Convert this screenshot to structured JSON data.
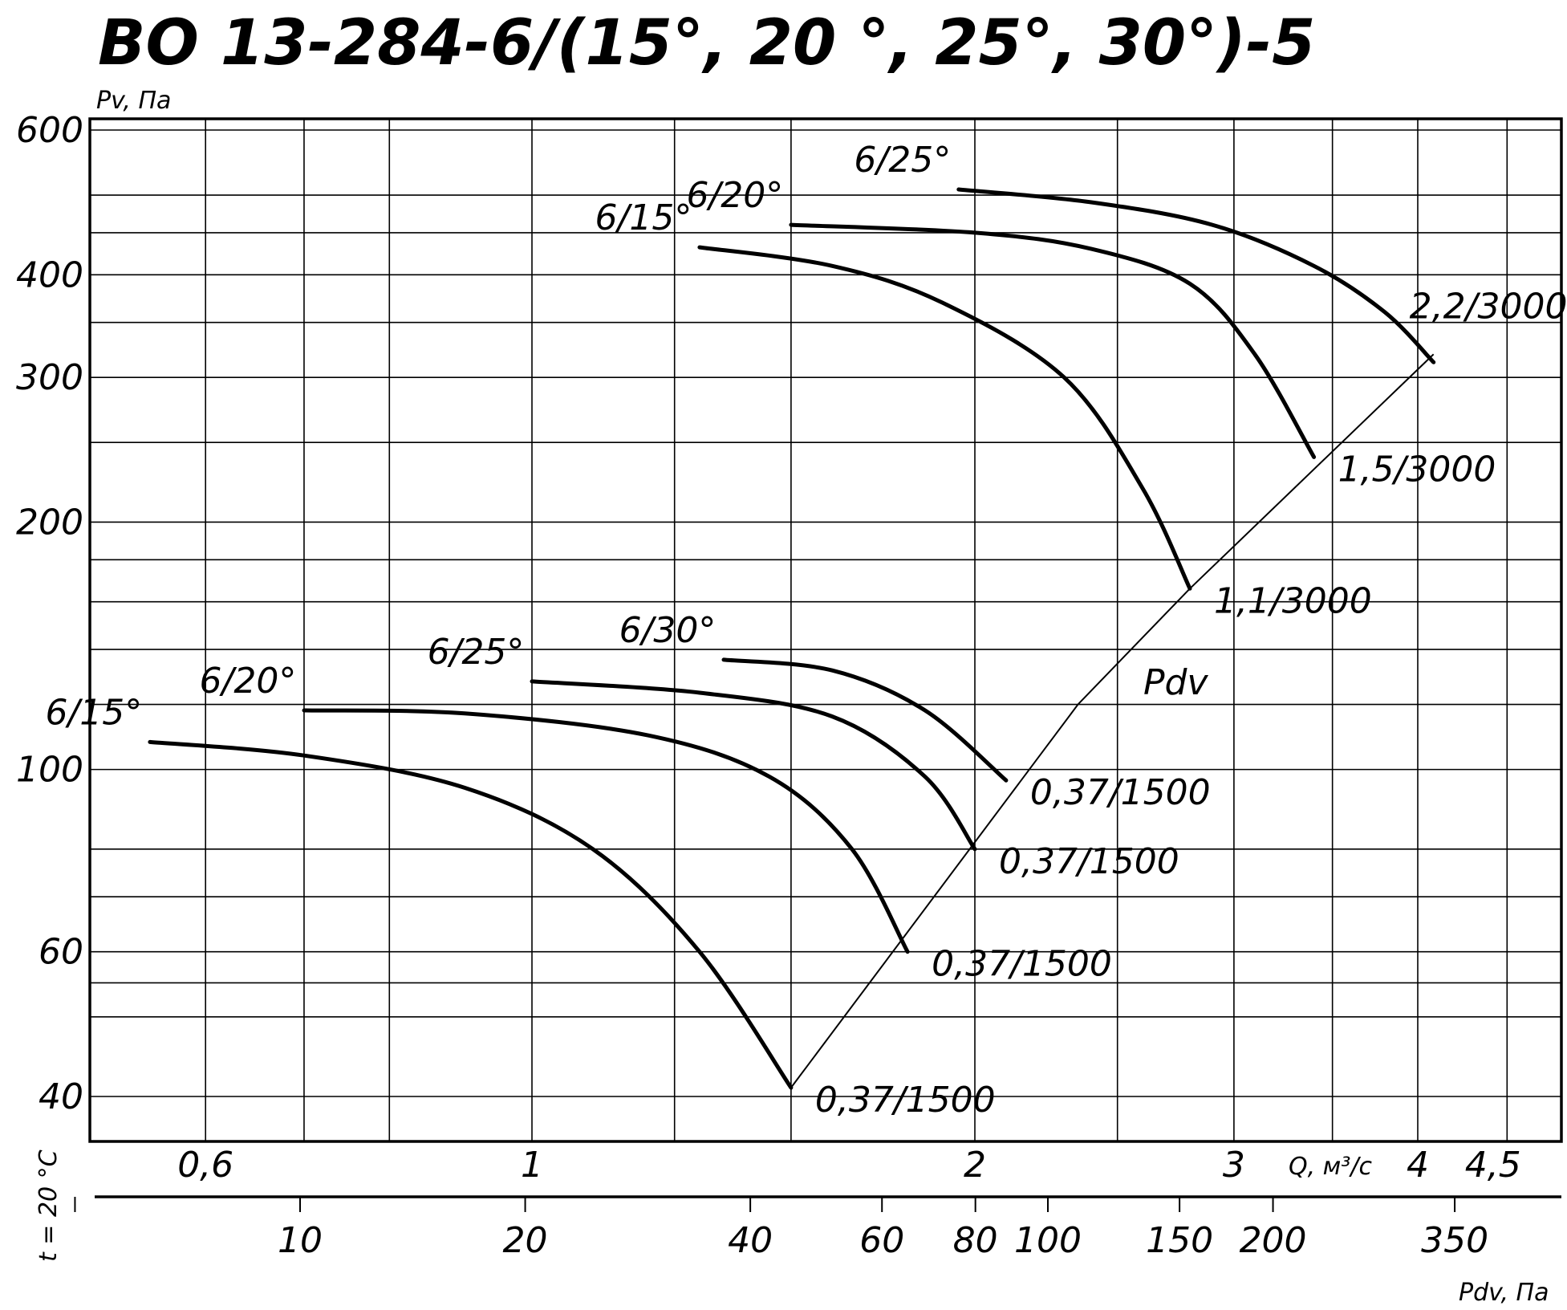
{
  "title": "ВО 13-284-6/(15°, 20 °, 25°, 30°)-5",
  "chart_data": {
    "type": "line",
    "title": "ВО 13-284-6/(15°, 20 °, 25°, 30°)-5",
    "ylabel": "Pv, Па",
    "xlabel": "Q, м³/с",
    "x2label": "Pdv, Па",
    "temperature_label": "t = 20 °C",
    "y_scale": "log",
    "x_scale": "log",
    "ylim": [
      36,
      620
    ],
    "xlim": [
      0.5,
      5
    ],
    "y_ticks": [
      {
        "value": 40,
        "label": "40"
      },
      {
        "value": 60,
        "label": "60"
      },
      {
        "value": 100,
        "label": "100"
      },
      {
        "value": 200,
        "label": "200"
      },
      {
        "value": 300,
        "label": "300"
      },
      {
        "value": 400,
        "label": "400"
      },
      {
        "value": 600,
        "label": "600"
      }
    ],
    "y_grid": [
      40,
      50,
      55,
      60,
      70,
      80,
      100,
      120,
      140,
      160,
      180,
      200,
      250,
      300,
      350,
      400,
      450,
      500,
      600
    ],
    "x_ticks": [
      {
        "value": 0.6,
        "label": "0,6"
      },
      {
        "value": 1,
        "label": "1"
      },
      {
        "value": 2,
        "label": "2"
      },
      {
        "value": 3,
        "label": "3"
      },
      {
        "value": 4,
        "label": "4"
      },
      {
        "value": 4.5,
        "label": "4,5"
      }
    ],
    "x_grid": [
      0.6,
      0.7,
      0.8,
      1.0,
      1.25,
      1.5,
      2.0,
      2.5,
      3.0,
      3.5,
      4.0,
      4.6
    ],
    "pdv_ticks": [
      {
        "value": 5,
        "label": ""
      },
      {
        "value": 10,
        "label": "10"
      },
      {
        "value": 20,
        "label": "20"
      },
      {
        "value": 40,
        "label": "40"
      },
      {
        "value": 60,
        "label": "60"
      },
      {
        "value": 80,
        "label": "80"
      },
      {
        "value": 100,
        "label": "100"
      },
      {
        "value": 150,
        "label": "150"
      },
      {
        "value": 200,
        "label": "200"
      },
      {
        "value": 350,
        "label": "350"
      }
    ],
    "pdv_line_label": "Pdv",
    "series": [
      {
        "name": "6/15°",
        "motor": "0,37/1500",
        "x": [
          0.55,
          0.7,
          0.9,
          1.1,
          1.3,
          1.5
        ],
        "y": [
          108,
          104,
          95,
          80,
          60,
          41
        ]
      },
      {
        "name": "6/20°",
        "motor": "0,37/1500",
        "x": [
          0.7,
          0.9,
          1.2,
          1.45,
          1.65,
          1.8
        ],
        "y": [
          118,
          117,
          110,
          98,
          80,
          60
        ]
      },
      {
        "name": "6/25°",
        "motor": "0,37/1500",
        "x": [
          1.0,
          1.3,
          1.6,
          1.85,
          2.0
        ],
        "y": [
          128,
          124,
          116,
          98,
          80
        ]
      },
      {
        "name": "6/30°",
        "motor": "0,37/1500",
        "x": [
          1.35,
          1.6,
          1.85,
          2.1
        ],
        "y": [
          136,
          132,
          118,
          97
        ]
      },
      {
        "name": "6/15°",
        "motor": "1,1/3000",
        "x": [
          1.3,
          1.6,
          1.9,
          2.3,
          2.6,
          2.8
        ],
        "y": [
          432,
          410,
          370,
          300,
          220,
          166
        ]
      },
      {
        "name": "6/20°",
        "motor": "1,5/3000",
        "x": [
          1.5,
          2.0,
          2.4,
          2.8,
          3.1,
          3.4
        ],
        "y": [
          460,
          450,
          430,
          390,
          320,
          240
        ]
      },
      {
        "name": "6/25°",
        "motor": "2,2/3000",
        "x": [
          1.95,
          2.4,
          2.9,
          3.4,
          3.8,
          4.1
        ],
        "y": [
          508,
          490,
          460,
          410,
          360,
          313
        ]
      }
    ]
  },
  "curve_labels": [
    {
      "text": "6/15°",
      "tx": 0.55,
      "ty": 108
    },
    {
      "text": "6/20°",
      "tx": 0.7,
      "ty": 118
    },
    {
      "text": "6/25°",
      "tx": 1.0,
      "ty": 128
    },
    {
      "text": "6/30°",
      "tx": 1.35,
      "ty": 136
    },
    {
      "text": "6/15°",
      "tx": 1.3,
      "ty": 432
    },
    {
      "text": "6/20°",
      "tx": 1.5,
      "ty": 460
    },
    {
      "text": "6/25°",
      "tx": 1.95,
      "ty": 508
    }
  ],
  "motor_labels": [
    "0,37/1500",
    "0,37/1500",
    "0,37/1500",
    "0,37/1500",
    "1,1/3000",
    "1,5/3000",
    "2,2/3000"
  ]
}
